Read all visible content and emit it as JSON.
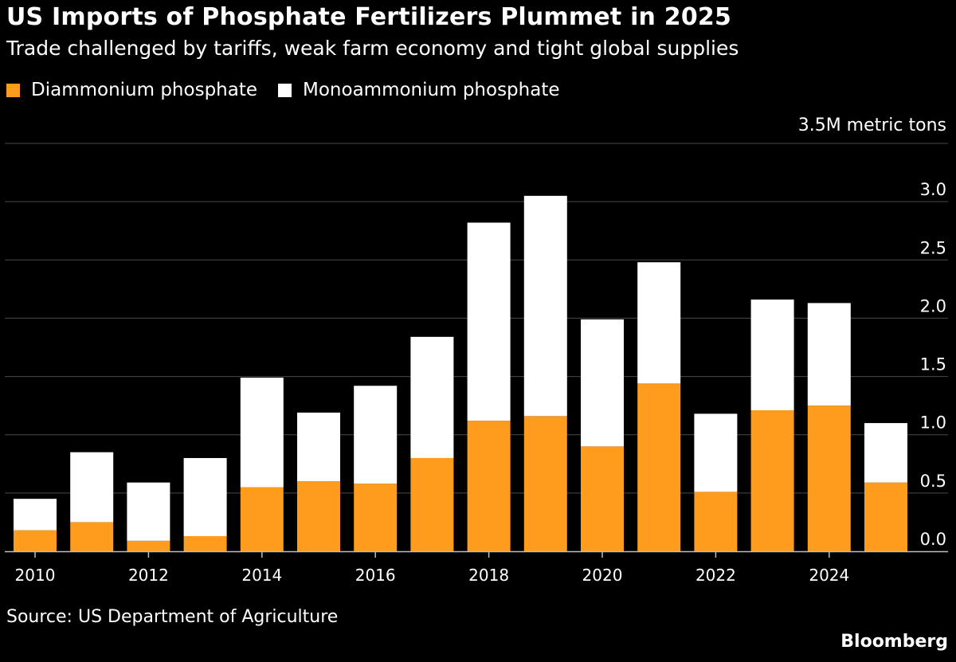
{
  "header": {
    "title": "US Imports of Phosphate Fertilizers Plummet in 2025",
    "subtitle": "Trade challenged by tariffs, weak farm economy and tight global supplies"
  },
  "legend": [
    {
      "label": "Diammonium phosphate",
      "color": "#ff9b1d"
    },
    {
      "label": "Monoammonium phosphate",
      "color": "#ffffff"
    }
  ],
  "footer": {
    "source": "Source: US Department of Agriculture",
    "brand": "Bloomberg"
  },
  "chart_data": {
    "type": "bar",
    "stacked": true,
    "unit_label": "3.5M metric tons",
    "categories": [
      2010,
      2011,
      2012,
      2013,
      2014,
      2015,
      2016,
      2017,
      2018,
      2019,
      2020,
      2021,
      2022,
      2023,
      2024,
      2025
    ],
    "series": [
      {
        "name": "Diammonium phosphate",
        "color": "#ff9b1d",
        "values": [
          0.18,
          0.25,
          0.09,
          0.13,
          0.55,
          0.6,
          0.58,
          0.8,
          1.12,
          1.16,
          0.9,
          1.44,
          0.51,
          1.21,
          1.25,
          0.59
        ]
      },
      {
        "name": "Monoammonium phosphate",
        "color": "#ffffff",
        "values": [
          0.27,
          0.6,
          0.5,
          0.67,
          0.94,
          0.59,
          0.84,
          1.04,
          1.7,
          1.89,
          1.09,
          1.04,
          0.67,
          0.95,
          0.88,
          0.51
        ]
      }
    ],
    "y_ticks": [
      0.0,
      0.5,
      1.0,
      1.5,
      2.0,
      2.5,
      3.0
    ],
    "y_tick_labels": [
      "0.0",
      "0.5",
      "1.0",
      "1.5",
      "2.0",
      "2.5",
      "3.0"
    ],
    "x_tick_labels": [
      "2010",
      "2012",
      "2014",
      "2016",
      "2018",
      "2020",
      "2022",
      "2024"
    ],
    "ylim": [
      0,
      3.5
    ],
    "grid": true,
    "legend_position": "top-left",
    "xlabel": "",
    "ylabel": ""
  }
}
